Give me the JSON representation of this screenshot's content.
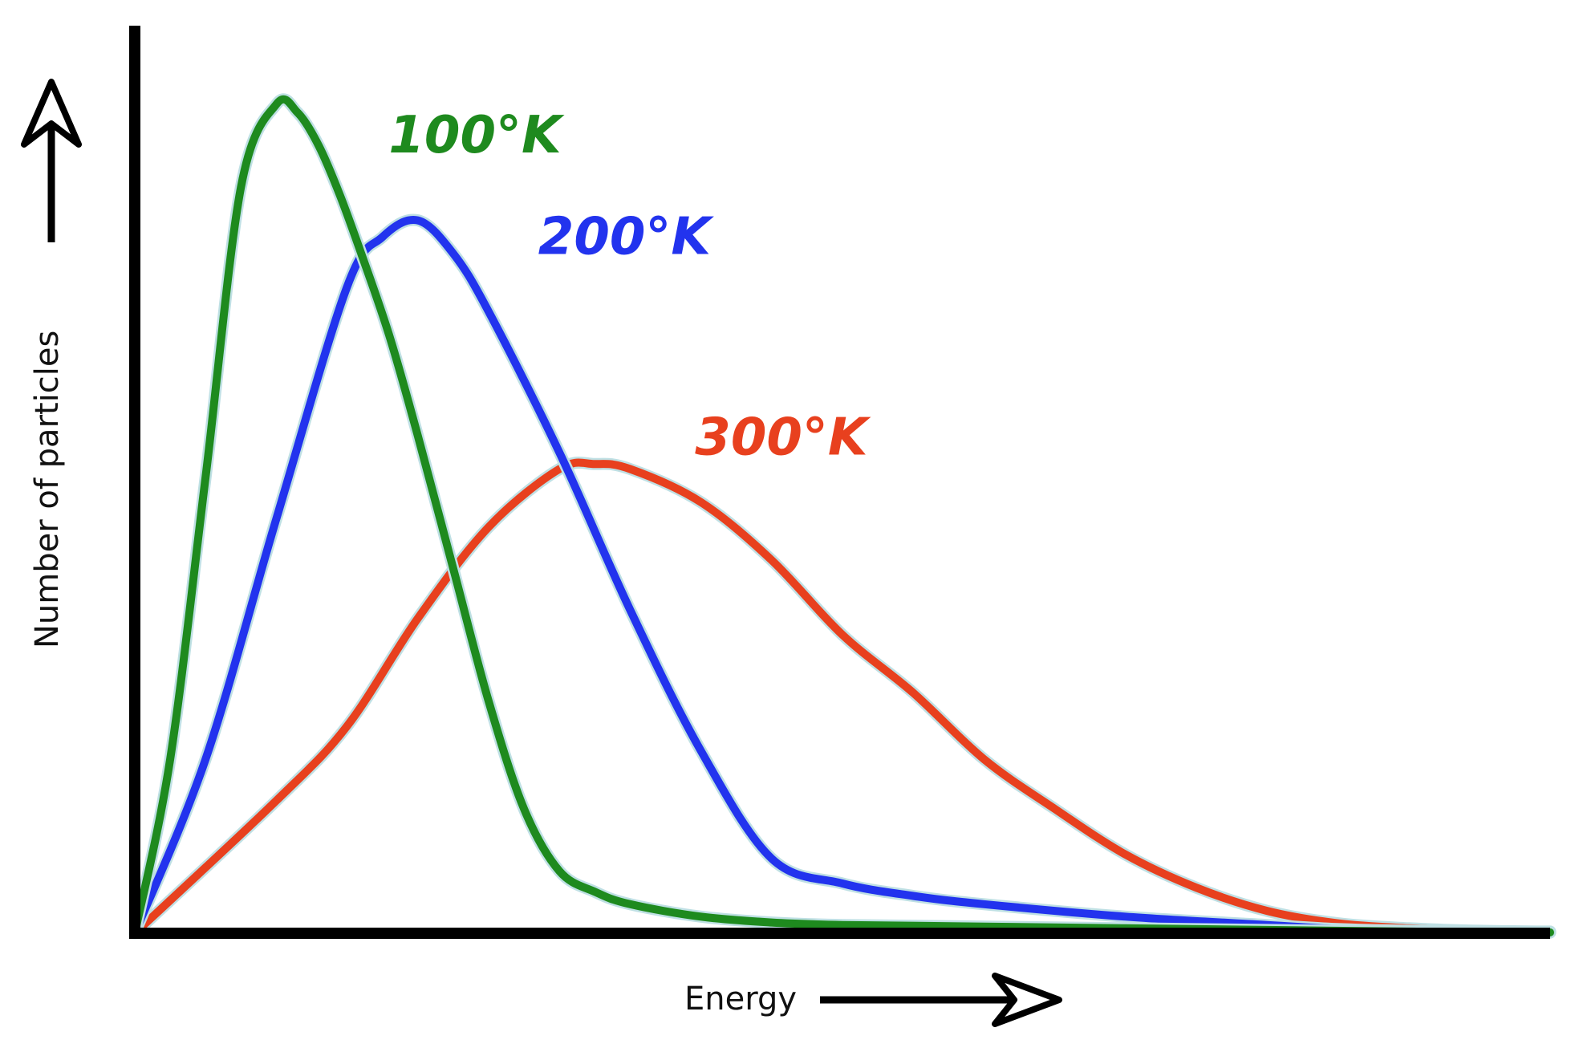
{
  "chart_data": {
    "type": "line",
    "title": "",
    "xlabel": "Energy",
    "ylabel": "Number of particles",
    "xlim": [
      0,
      10
    ],
    "ylim": [
      0,
      1
    ],
    "grid": false,
    "legend": "none",
    "series": [
      {
        "name": "100°K",
        "color": "#1e8a1e",
        "x": [
          0,
          0.25,
          0.5,
          0.75,
          1.0,
          1.15,
          1.3,
          1.45,
          1.6,
          1.8,
          2.0,
          2.25,
          2.5,
          2.75,
          3.0,
          3.25,
          3.5,
          4.0,
          4.5,
          5.0,
          6.0,
          7.0,
          8.0,
          9.0,
          10.0
        ],
        "y": [
          0,
          0.21,
          0.55,
          0.9,
          1.0,
          0.99,
          0.95,
          0.89,
          0.82,
          0.72,
          0.6,
          0.44,
          0.28,
          0.15,
          0.075,
          0.05,
          0.035,
          0.02,
          0.013,
          0.01,
          0.008,
          0.006,
          0.004,
          0.002,
          0.001
        ]
      },
      {
        "name": "200°K",
        "color": "#2233ee",
        "x": [
          0,
          0.5,
          1.0,
          1.5,
          1.75,
          2.0,
          2.25,
          2.5,
          3.0,
          3.5,
          4.0,
          4.5,
          5.0,
          5.5,
          6.0,
          7.0,
          8.0,
          8.5,
          9.0,
          10.0
        ],
        "y": [
          0,
          0.21,
          0.5,
          0.78,
          0.84,
          0.86,
          0.82,
          0.75,
          0.58,
          0.39,
          0.22,
          0.09,
          0.06,
          0.045,
          0.035,
          0.02,
          0.01,
          0.005,
          0.003,
          0.001
        ]
      },
      {
        "name": "300°K",
        "color": "#e8401e",
        "x": [
          0,
          1.0,
          1.5,
          2.0,
          2.5,
          3.0,
          3.25,
          3.5,
          4.0,
          4.5,
          5.0,
          5.5,
          6.0,
          6.5,
          7.0,
          7.5,
          8.0,
          8.5,
          9.0,
          9.5,
          10.0
        ],
        "y": [
          0,
          0.16,
          0.25,
          0.38,
          0.49,
          0.56,
          0.566,
          0.56,
          0.52,
          0.45,
          0.36,
          0.29,
          0.21,
          0.15,
          0.095,
          0.055,
          0.027,
          0.012,
          0.006,
          0.003,
          0.002
        ]
      }
    ]
  }
}
